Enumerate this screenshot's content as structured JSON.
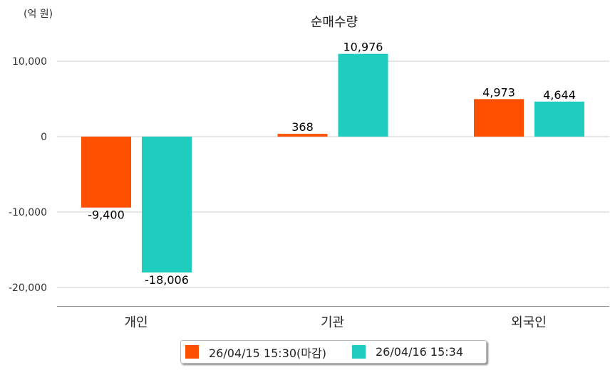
{
  "chart_data": {
    "type": "bar",
    "title": "순매수량",
    "unit_label": "(억 원)",
    "xlabel": "",
    "ylabel": "",
    "categories": [
      "개인",
      "기관",
      "외국인"
    ],
    "series": [
      {
        "name": "26/04/15 15:30(마감)",
        "color": "#ff5000",
        "values": [
          -9400,
          368,
          4973
        ],
        "labels": [
          "-9,400",
          "368",
          "4,973"
        ]
      },
      {
        "name": "26/04/16 15:34",
        "color": "#1ecdbd",
        "values": [
          -18006,
          10976,
          4644
        ],
        "labels": [
          "-18,006",
          "10,976",
          "4,644"
        ]
      }
    ],
    "yticks": [
      10000,
      0,
      -10000,
      -20000
    ],
    "ytick_labels": [
      "10,000",
      "0",
      "-10,000",
      "-20,000"
    ],
    "ylim": [
      -22400,
      12500
    ],
    "grid": true,
    "legend_position": "bottom"
  }
}
